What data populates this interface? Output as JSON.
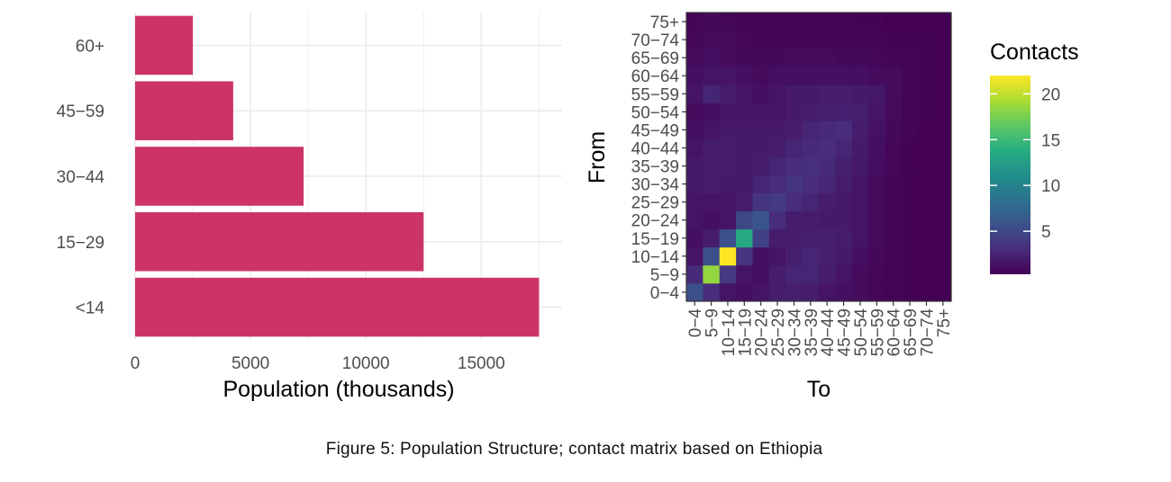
{
  "caption": "Figure  5: Population Structure; contact matrix based on Ethiopia",
  "colors": {
    "bar_fill": "#CC3366",
    "grid": "#EBEBEB",
    "panel_border": "#333333",
    "viridis": [
      "#440154",
      "#472D7B",
      "#3B528B",
      "#2C728E",
      "#21908C",
      "#27AD81",
      "#5DC863",
      "#AADC32",
      "#FDE725"
    ]
  },
  "chart_data": [
    {
      "type": "bar",
      "orientation": "horizontal",
      "categories": [
        "<14",
        "15−29",
        "30−44",
        "45−59",
        "60+"
      ],
      "values": [
        17500,
        12500,
        7300,
        4250,
        2500
      ],
      "xlabel": "Population (thousands)",
      "ylabel": "",
      "xlim": [
        0,
        18500
      ],
      "xticks": [
        0,
        5000,
        10000,
        15000
      ],
      "xtick_labels": [
        "0",
        "5000",
        "10000",
        "15000"
      ],
      "grid": true
    },
    {
      "type": "heatmap",
      "x_categories": [
        "0−4",
        "5−9",
        "10−14",
        "15−19",
        "20−24",
        "25−29",
        "30−34",
        "35−39",
        "40−44",
        "45−49",
        "50−54",
        "55−59",
        "60−64",
        "65−69",
        "70−74",
        "75+"
      ],
      "y_categories": [
        "0−4",
        "5−9",
        "10−14",
        "15−19",
        "20−24",
        "25−29",
        "30−34",
        "35−39",
        "40−44",
        "45−49",
        "50−54",
        "55−59",
        "60−64",
        "65−69",
        "70−74",
        "75+"
      ],
      "xlabel": "To",
      "ylabel": "From",
      "rows_from_y": [
        [
          5.5,
          3.0,
          1.5,
          1.2,
          1.5,
          2.0,
          2.2,
          2.0,
          1.5,
          1.2,
          1.0,
          0.7,
          0.5,
          0.4,
          0.3,
          0.3
        ],
        [
          2.8,
          18.5,
          4.0,
          1.5,
          1.2,
          2.0,
          2.5,
          2.5,
          2.0,
          1.5,
          1.0,
          0.7,
          0.5,
          0.4,
          0.3,
          0.3
        ],
        [
          1.5,
          5.5,
          22.0,
          3.5,
          1.2,
          1.5,
          2.2,
          2.5,
          2.2,
          1.7,
          1.2,
          0.8,
          0.5,
          0.4,
          0.3,
          0.3
        ],
        [
          1.2,
          2.0,
          5.5,
          13.5,
          4.5,
          2.0,
          2.0,
          2.2,
          2.2,
          2.0,
          1.5,
          1.0,
          0.6,
          0.4,
          0.3,
          0.3
        ],
        [
          1.5,
          1.2,
          1.5,
          5.0,
          6.0,
          3.0,
          2.0,
          2.0,
          1.8,
          1.8,
          1.5,
          1.0,
          0.6,
          0.4,
          0.3,
          0.3
        ],
        [
          1.5,
          1.5,
          1.5,
          2.0,
          3.5,
          4.0,
          3.0,
          2.5,
          2.0,
          1.8,
          1.5,
          1.0,
          0.6,
          0.4,
          0.3,
          0.3
        ],
        [
          1.8,
          2.0,
          1.8,
          1.8,
          2.5,
          3.0,
          3.5,
          3.0,
          2.5,
          2.0,
          1.5,
          1.0,
          0.6,
          0.4,
          0.3,
          0.3
        ],
        [
          1.8,
          2.0,
          2.0,
          1.8,
          2.0,
          2.5,
          3.0,
          3.2,
          2.8,
          2.2,
          1.7,
          1.1,
          0.7,
          0.4,
          0.3,
          0.3
        ],
        [
          1.5,
          2.0,
          2.0,
          1.8,
          1.8,
          2.0,
          2.5,
          2.8,
          3.0,
          2.5,
          1.8,
          1.2,
          0.7,
          0.4,
          0.3,
          0.3
        ],
        [
          1.2,
          1.5,
          1.8,
          1.8,
          1.8,
          1.8,
          2.0,
          2.5,
          2.8,
          3.0,
          2.0,
          1.3,
          0.8,
          0.5,
          0.3,
          0.3
        ],
        [
          1.0,
          1.2,
          1.5,
          1.5,
          1.5,
          1.5,
          1.8,
          2.0,
          2.2,
          2.3,
          2.2,
          1.5,
          0.9,
          0.5,
          0.4,
          0.3
        ],
        [
          1.5,
          2.5,
          2.0,
          1.5,
          1.2,
          1.5,
          1.8,
          1.8,
          2.0,
          2.0,
          1.8,
          1.7,
          1.0,
          0.6,
          0.4,
          0.3
        ],
        [
          1.2,
          1.5,
          1.5,
          1.2,
          1.0,
          1.2,
          1.2,
          1.2,
          1.2,
          1.2,
          1.2,
          1.0,
          1.0,
          0.6,
          0.4,
          0.3
        ],
        [
          0.9,
          1.2,
          1.0,
          0.8,
          0.8,
          0.8,
          0.9,
          0.9,
          0.9,
          0.8,
          0.8,
          0.7,
          0.6,
          0.6,
          0.4,
          0.3
        ],
        [
          0.7,
          1.0,
          0.9,
          0.7,
          0.6,
          0.6,
          0.6,
          0.6,
          0.6,
          0.6,
          0.5,
          0.5,
          0.4,
          0.4,
          0.4,
          0.3
        ],
        [
          0.6,
          0.8,
          0.7,
          0.6,
          0.5,
          0.5,
          0.5,
          0.5,
          0.5,
          0.5,
          0.4,
          0.4,
          0.3,
          0.3,
          0.3,
          0.3
        ]
      ],
      "colorbar": {
        "title": "Contacts",
        "range": [
          0.3,
          22
        ],
        "ticks": [
          5,
          10,
          15,
          20
        ],
        "tick_labels": [
          "5",
          "10",
          "15",
          "20"
        ]
      }
    }
  ]
}
